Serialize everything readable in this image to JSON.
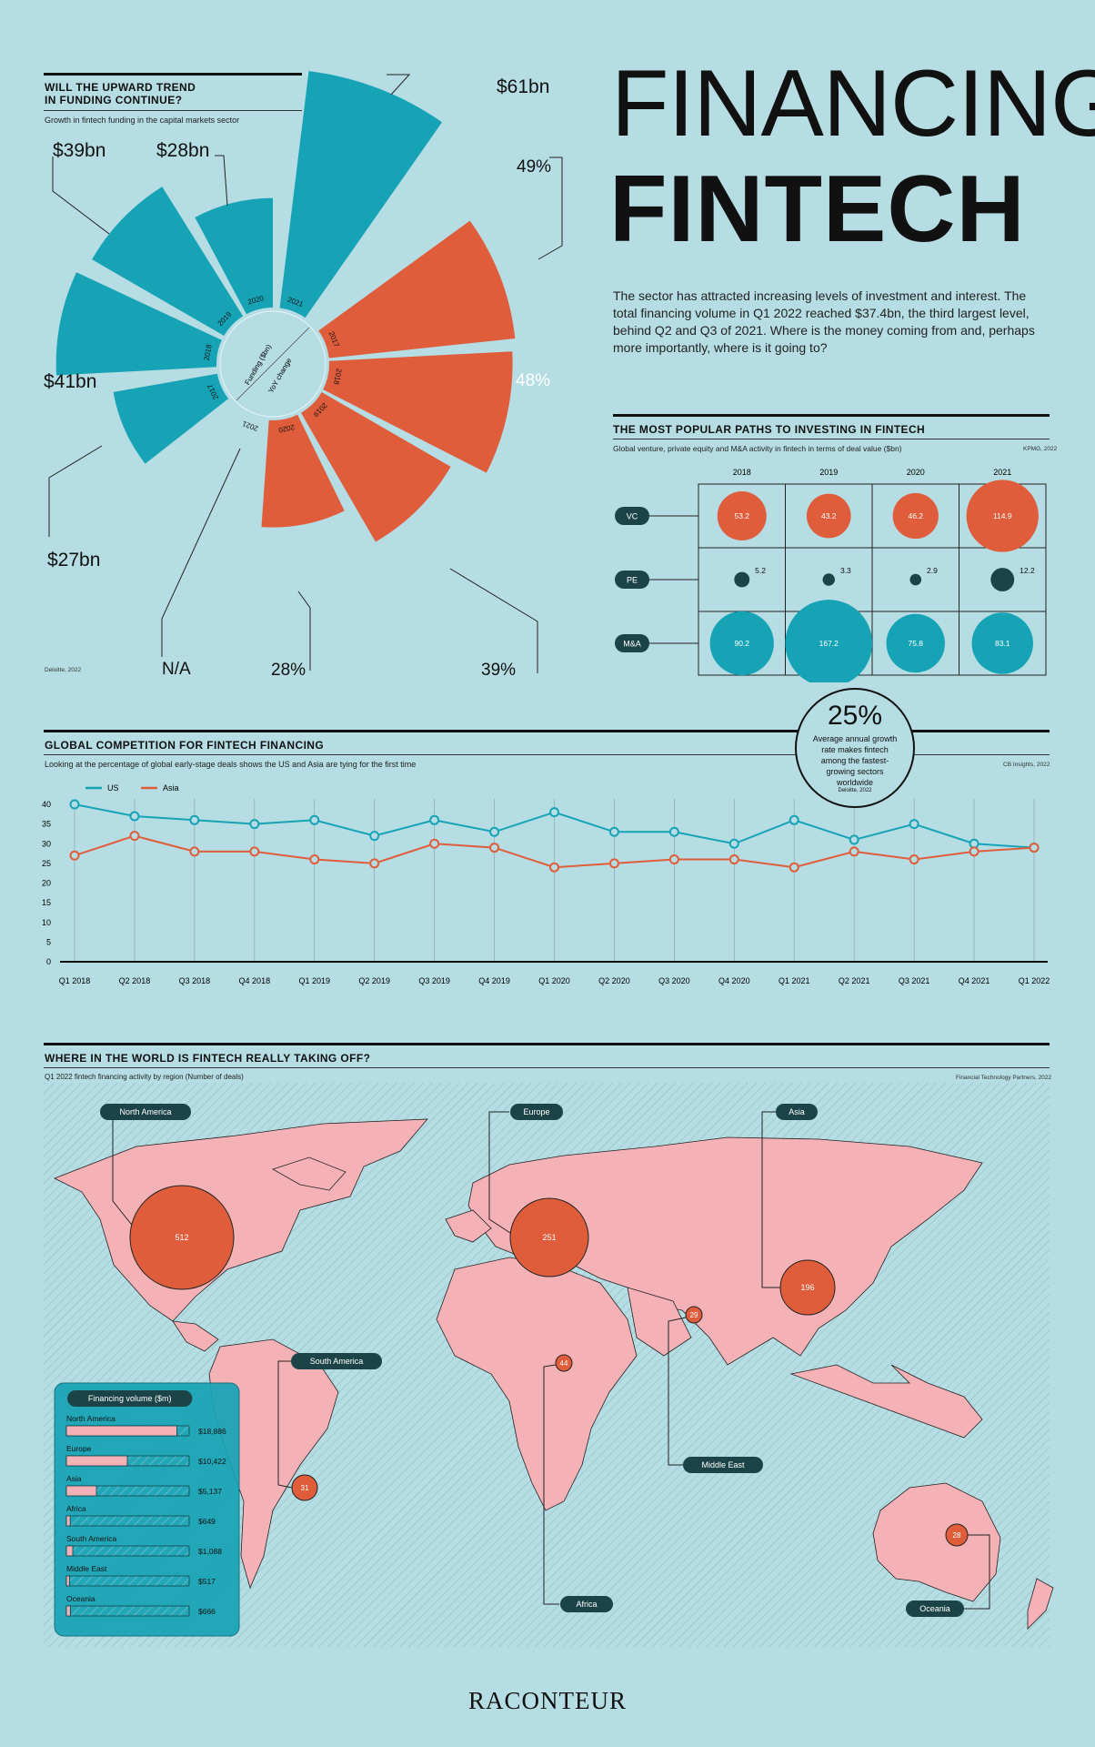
{
  "header": {
    "title_line1": "FINANCING",
    "title_line2": "FINTECH",
    "intro": "The sector has attracted increasing levels of investment and interest. The total financing volume in Q1 2022 reached $37.4bn, the third largest level, behind Q2 and Q3 of 2021. Where is the money coming from and, perhaps more importantly, where is it going to?"
  },
  "colors": {
    "teal": "#16a3b6",
    "orange": "#e05d3c",
    "bg": "#b5dde3",
    "dark": "#1c4448",
    "pink": "#f4b1b6"
  },
  "section1": {
    "heading_line1": "WILL THE UPWARD TREND",
    "heading_line2": "IN FUNDING CONTINUE?",
    "subheading": "Growth in fintech funding in the capital markets sector",
    "source": "Deloitte, 2022",
    "center_top": "Funding ($bn)",
    "center_bottom": "YoY change",
    "funding_labels": {
      "y2021": "$61bn",
      "y2020": "$28bn",
      "y2019": "$39bn",
      "y2018": "$41bn",
      "y2017": "$27bn"
    },
    "change_labels": {
      "y2017": "49%",
      "y2018": "48%",
      "y2019": "39%",
      "y2020": "28%",
      "y2021": "N/A"
    }
  },
  "section2": {
    "heading": "THE MOST POPULAR PATHS TO INVESTING IN FINTECH",
    "subheading": "Global venture, private equity and M&A activity in fintech in terms of deal value ($bn)",
    "source": "KPMG, 2022"
  },
  "section3": {
    "heading": "GLOBAL COMPETITION FOR FINTECH FINANCING",
    "subheading": "Looking at the percentage of global early-stage deals shows the US and Asia are tying for the first time",
    "source": "CB Insights, 2022",
    "callout_value": "25%",
    "callout_text_1": "Average annual growth",
    "callout_text_2": "rate makes fintech",
    "callout_text_3": "among the fastest-",
    "callout_text_4": "growing sectors",
    "callout_text_5": "worldwide",
    "callout_source": "Deloitte, 2022"
  },
  "section4": {
    "heading": "WHERE IN THE WORLD IS FINTECH REALLY TAKING OFF?",
    "subheading": "Q1 2022 fintech financing activity by region (Number of deals)",
    "source": "Financial Technology Partners, 2022",
    "regions": [
      {
        "name": "North America",
        "deals": "512"
      },
      {
        "name": "Europe",
        "deals": "251"
      },
      {
        "name": "Asia",
        "deals": "196"
      },
      {
        "name": "Middle East",
        "deals": "29"
      },
      {
        "name": "Africa",
        "deals": "44"
      },
      {
        "name": "South America",
        "deals": "31"
      },
      {
        "name": "Oceania",
        "deals": "28"
      }
    ],
    "volume_title": "Financing volume ($m)",
    "volumes": [
      {
        "name": "North America",
        "value": 18886,
        "label": "$18,886"
      },
      {
        "name": "Europe",
        "value": 10422,
        "label": "$10,422"
      },
      {
        "name": "Asia",
        "value": 5137,
        "label": "$5,137"
      },
      {
        "name": "Africa",
        "value": 649,
        "label": "$649"
      },
      {
        "name": "South America",
        "value": 1088,
        "label": "$1,088"
      },
      {
        "name": "Middle East",
        "value": 517,
        "label": "$517"
      },
      {
        "name": "Oceania",
        "value": 666,
        "label": "$666"
      }
    ]
  },
  "footer": {
    "logo": "RACONTEUR"
  },
  "chart_data": [
    {
      "type": "bar",
      "subtype": "radial",
      "title": "WILL THE UPWARD TREND IN FUNDING CONTINUE?",
      "categories": [
        "2017",
        "2018",
        "2019",
        "2020",
        "2021"
      ],
      "series": [
        {
          "name": "Funding ($bn)",
          "values": [
            27,
            41,
            39,
            28,
            61
          ]
        },
        {
          "name": "YoY change",
          "values": [
            49,
            48,
            39,
            28,
            null
          ]
        }
      ]
    },
    {
      "type": "scatter",
      "subtype": "bubble-grid",
      "title": "THE MOST POPULAR PATHS TO INVESTING IN FINTECH",
      "categories": [
        "2018",
        "2019",
        "2020",
        "2021"
      ],
      "series": [
        {
          "name": "VC",
          "values": [
            53.2,
            43.2,
            46.2,
            114.9
          ],
          "labels": [
            "53.2",
            "43.2",
            "46.2",
            "114.9"
          ]
        },
        {
          "name": "PE",
          "values": [
            5.2,
            3.3,
            2.9,
            12.2
          ],
          "labels": [
            "5.2",
            "3.3",
            "2.9",
            "12.2"
          ]
        },
        {
          "name": "M&A",
          "values": [
            90.2,
            167.2,
            75.8,
            83.1
          ],
          "labels": [
            "90.2",
            "167.2",
            "75.8",
            "83.1"
          ]
        }
      ]
    },
    {
      "type": "line",
      "title": "GLOBAL COMPETITION FOR FINTECH FINANCING",
      "categories": [
        "Q1 2018",
        "Q2 2018",
        "Q3 2018",
        "Q4 2018",
        "Q1 2019",
        "Q2 2019",
        "Q3 2019",
        "Q4 2019",
        "Q1 2020",
        "Q2 2020",
        "Q3 2020",
        "Q4 2020",
        "Q1 2021",
        "Q2 2021",
        "Q3 2021",
        "Q4 2021",
        "Q1 2022"
      ],
      "y_ticks": [
        "0",
        "5",
        "10",
        "15",
        "20",
        "25",
        "30",
        "35",
        "40"
      ],
      "ylim": [
        0,
        40
      ],
      "series": [
        {
          "name": "US",
          "values": [
            40,
            37,
            36,
            35,
            36,
            32,
            36,
            33,
            38,
            33,
            33,
            30,
            36,
            31,
            35,
            30,
            29
          ]
        },
        {
          "name": "Asia",
          "values": [
            27,
            32,
            28,
            28,
            26,
            25,
            30,
            29,
            24,
            25,
            26,
            26,
            24,
            28,
            26,
            28,
            29
          ]
        }
      ]
    },
    {
      "type": "bar",
      "subtype": "horizontal",
      "title": "Financing volume ($m)",
      "categories": [
        "North America",
        "Europe",
        "Asia",
        "Africa",
        "South America",
        "Middle East",
        "Oceania"
      ],
      "values": [
        18886,
        10422,
        5137,
        649,
        1088,
        517,
        666
      ]
    }
  ]
}
